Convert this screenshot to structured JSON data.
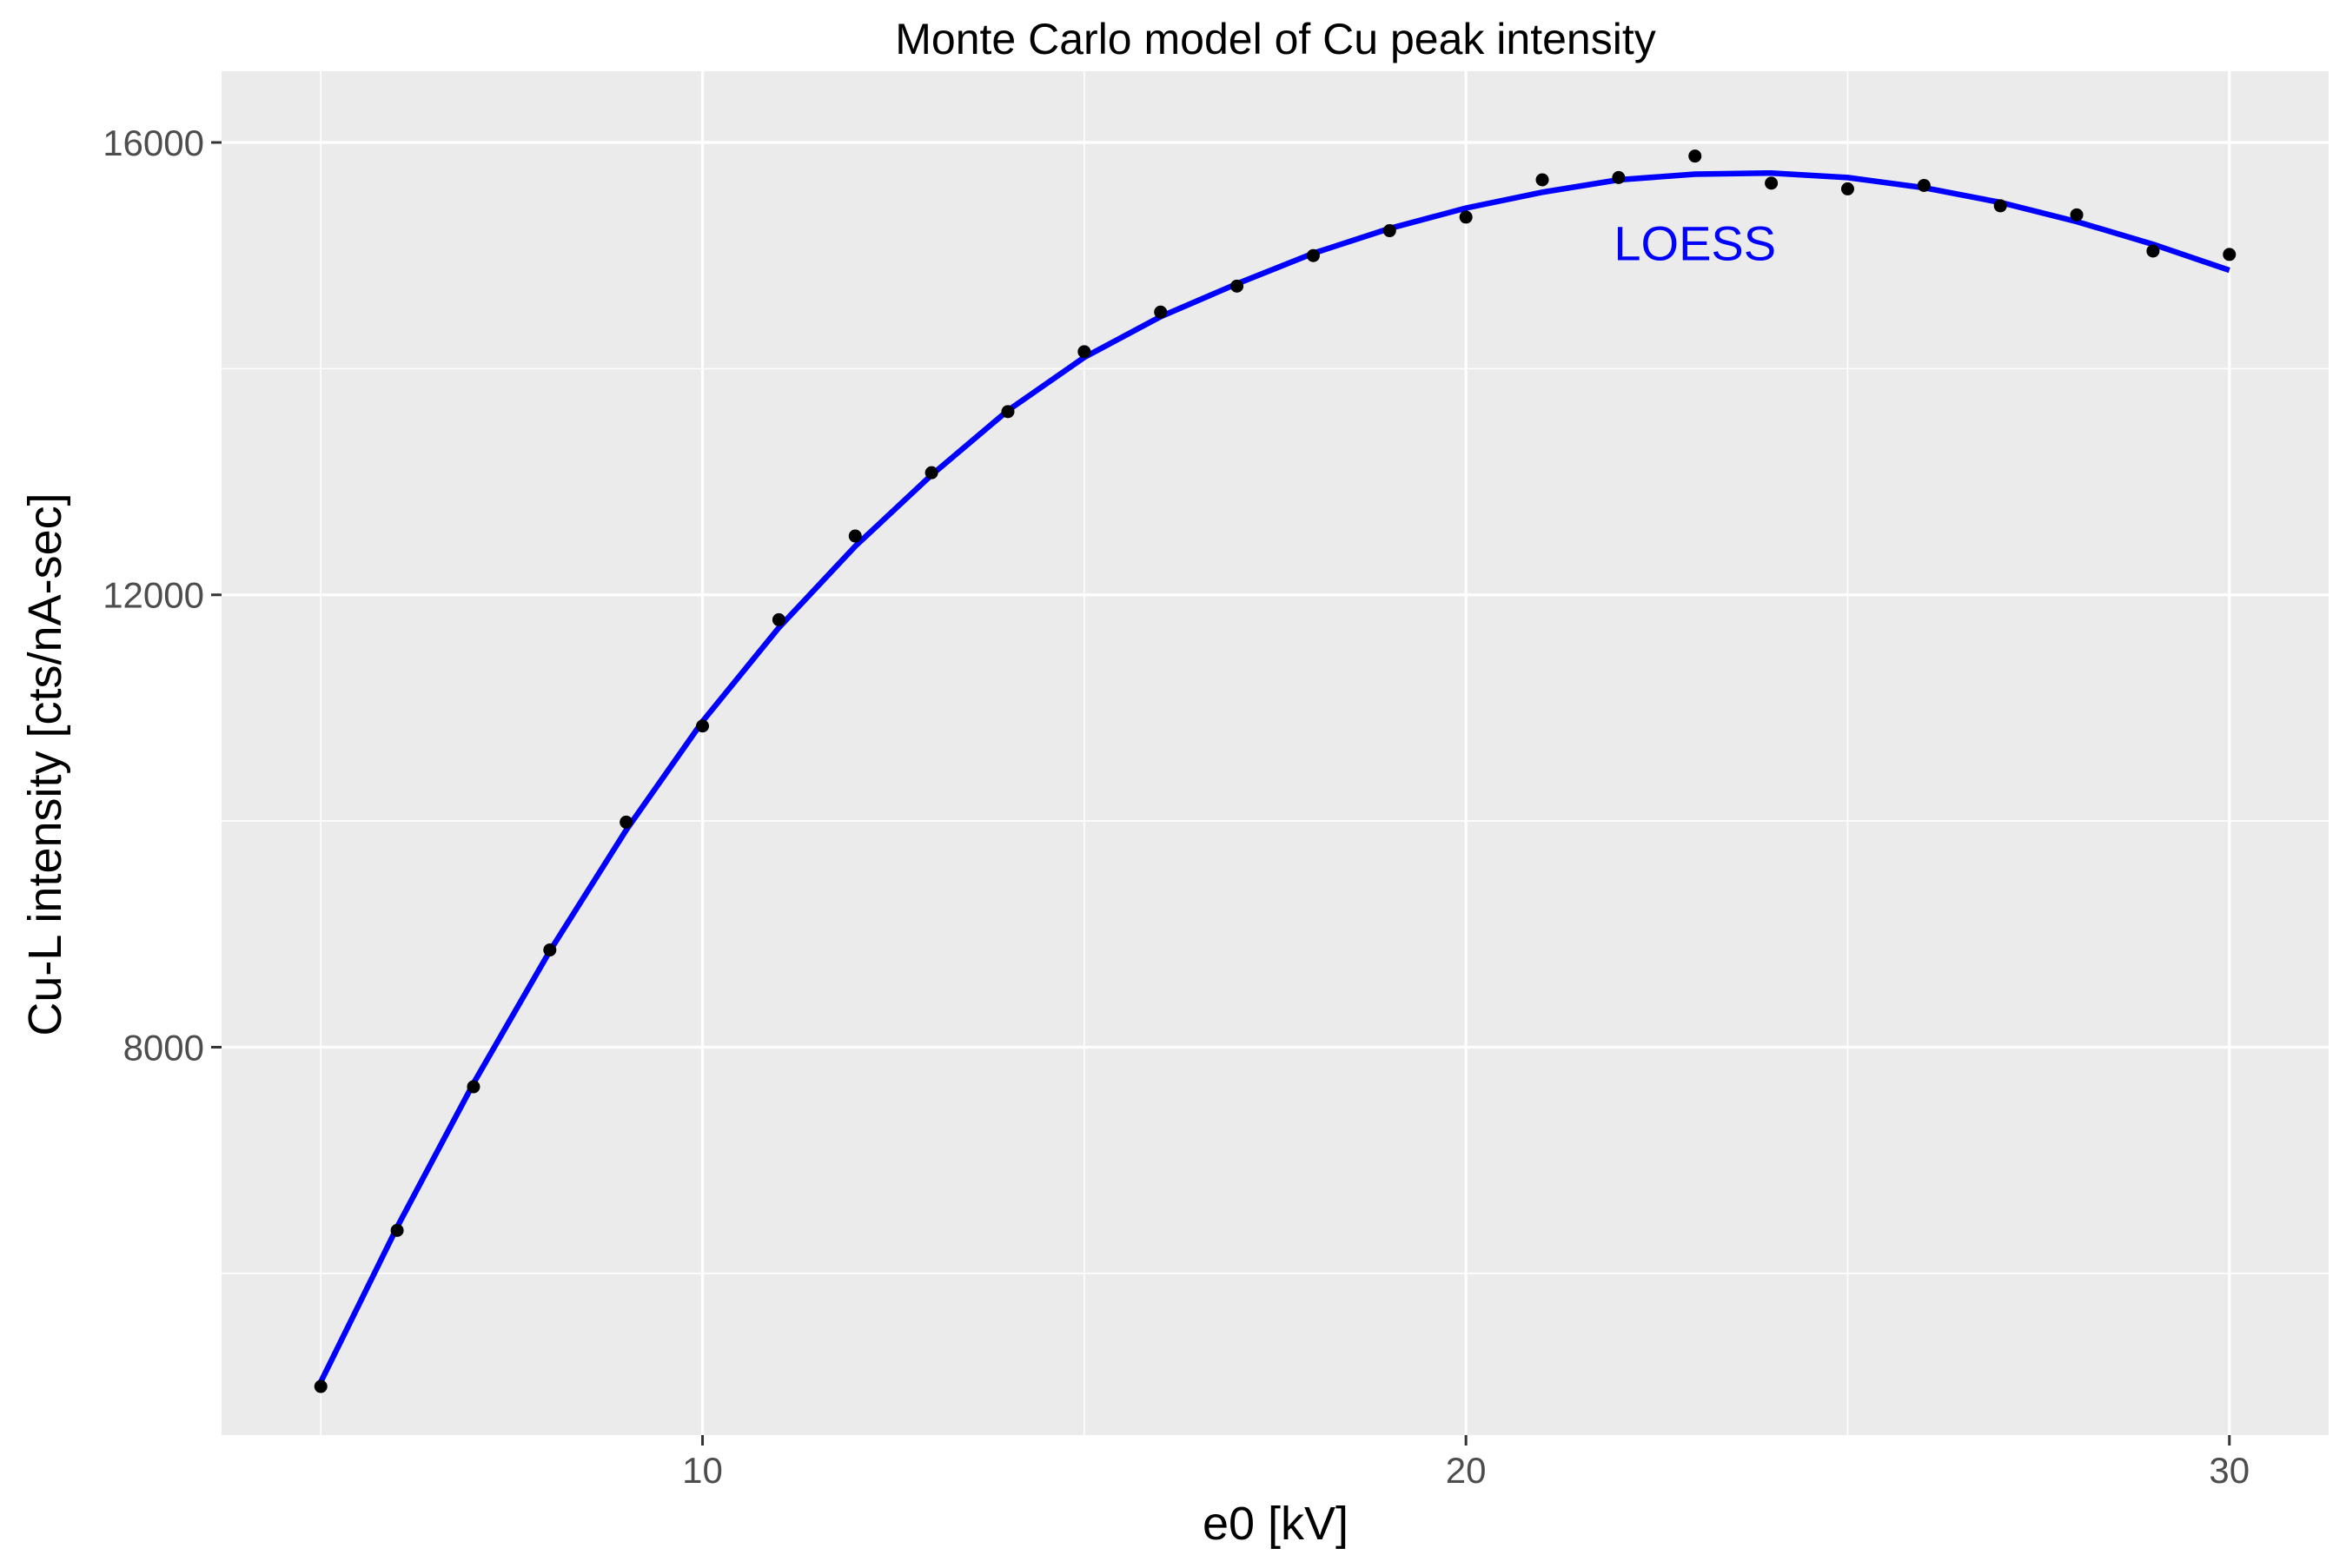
{
  "chart_data": {
    "type": "scatter",
    "title": "Monte Carlo model of Cu peak intensity",
    "xlabel": "e0 [kV]",
    "ylabel": "Cu-L intensity [cts/nA-sec]",
    "xlim": [
      3.7,
      31.3
    ],
    "ylim": [
      4570,
      16630
    ],
    "x_ticks": [
      10,
      20,
      30
    ],
    "x_tick_labels": [
      "10",
      "20",
      "30"
    ],
    "x_minor_ticks": [
      5,
      15,
      25
    ],
    "y_ticks": [
      8000,
      12000,
      16000
    ],
    "y_tick_labels": [
      "8000",
      "12000",
      "16000"
    ],
    "y_minor_ticks": [
      6000,
      10000,
      14000
    ],
    "grid": true,
    "background": "#ebebeb",
    "colors": {
      "points": "#000000",
      "fit": "#0000ff",
      "annotation": "#0000ff"
    },
    "series": [
      {
        "kind": "points",
        "x": [
          5,
          6,
          7,
          8,
          9,
          10,
          11,
          12,
          13,
          14,
          15,
          16,
          17,
          18,
          19,
          20,
          21,
          22,
          23,
          24,
          25,
          26,
          27,
          28,
          29,
          30
        ],
        "y": [
          5000,
          6380,
          7650,
          8860,
          9990,
          10840,
          11780,
          12520,
          13080,
          13620,
          14150,
          14500,
          14730,
          15000,
          15220,
          15340,
          15670,
          15690,
          15880,
          15640,
          15590,
          15620,
          15440,
          15360,
          15040,
          15010
        ]
      },
      {
        "kind": "fit",
        "x": [
          5,
          6,
          7,
          8,
          9,
          10,
          11,
          12,
          13,
          14,
          15,
          16,
          17,
          18,
          19,
          20,
          21,
          22,
          23,
          24,
          25,
          26,
          27,
          28,
          29,
          30
        ],
        "y": [
          5040,
          6410,
          7680,
          8850,
          9920,
          10880,
          11710,
          12430,
          13060,
          13630,
          14100,
          14460,
          14750,
          15020,
          15240,
          15420,
          15560,
          15670,
          15720,
          15730,
          15690,
          15600,
          15470,
          15300,
          15100,
          14870
        ]
      }
    ],
    "annotations": [
      {
        "text": "LOESS",
        "x": 23,
        "y": 14960
      }
    ]
  }
}
